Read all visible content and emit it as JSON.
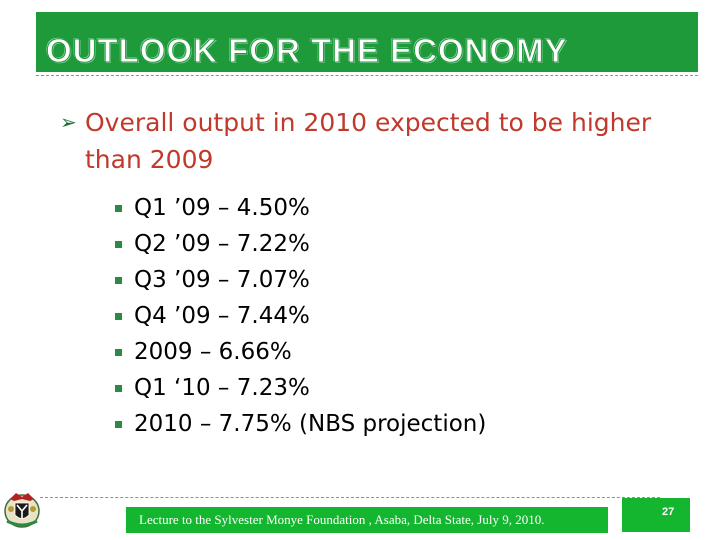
{
  "slide": {
    "title": "OUTLOOK FOR THE ECONOMY",
    "main_bullet": "Overall output in 2010 expected to be higher than 2009",
    "sub_bullets": [
      "Q1 ’09 – 4.50%",
      "Q2 ’09 – 7.22%",
      "Q3 ’09 – 7.07%",
      "Q4 ’09 – 7.44%",
      "2009 – 6.66%",
      "Q1 ‘10 – 7.23%",
      "2010 – 7.75% (NBS projection)"
    ]
  },
  "footer": {
    "text": "Lecture to the Sylvester Monye Foundation , Asaba, Delta State, July 9, 2010.",
    "page_number": "27"
  },
  "colors": {
    "title_bar": "#1f9a3b",
    "main_bullet_text": "#c0392b",
    "footer_box": "#14b52f"
  },
  "icons": {
    "main_bullet": "arrow-bullet-icon",
    "sub_bullet": "square-bullet-icon",
    "logo": "coat-of-arms-logo"
  }
}
